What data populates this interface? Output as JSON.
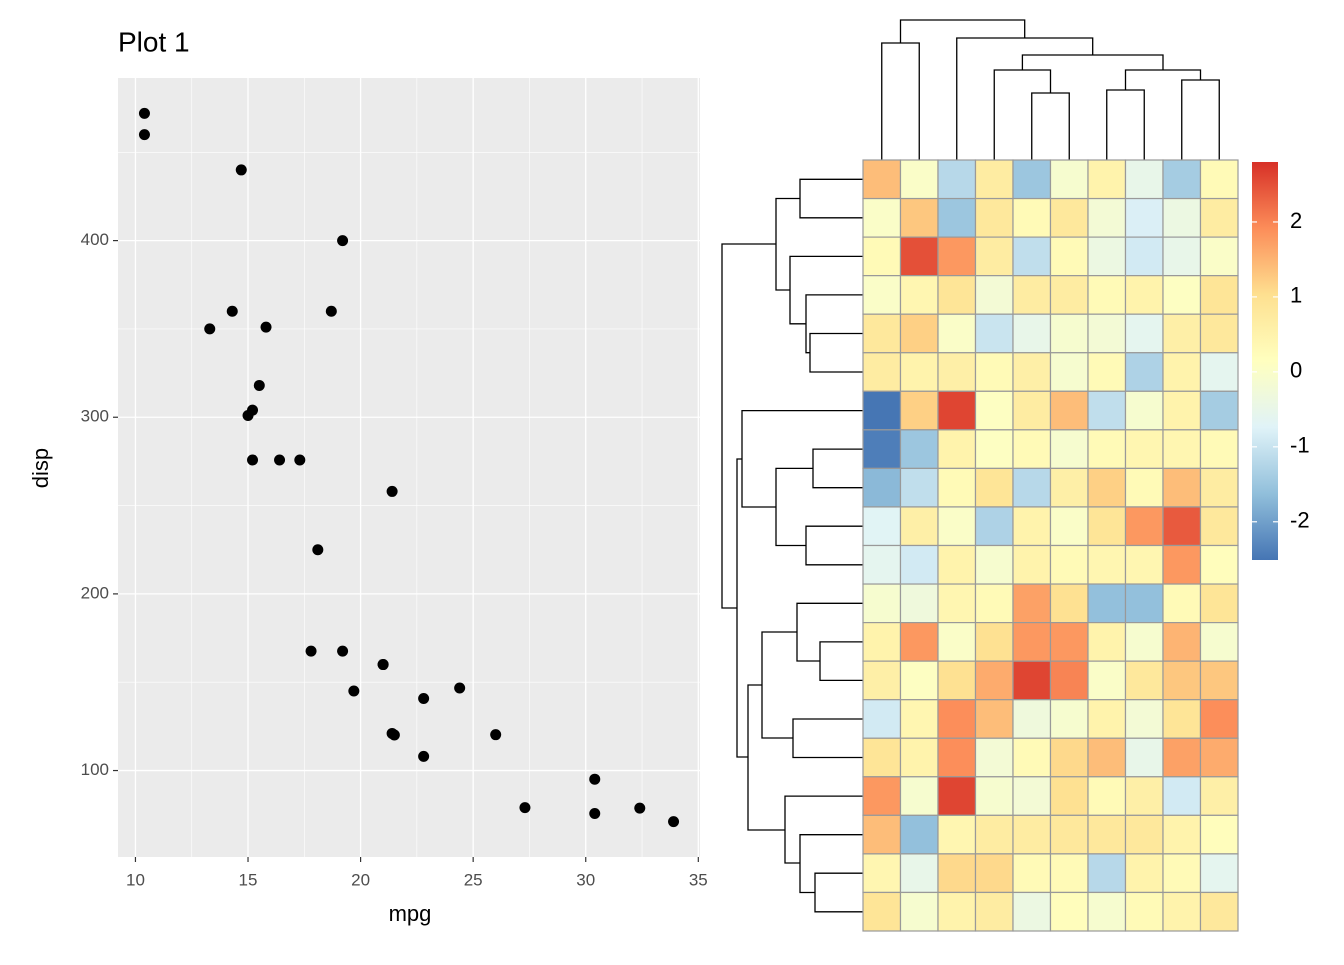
{
  "chart_data": [
    {
      "type": "scatter",
      "title": "Plot 1",
      "x_label": "mpg",
      "y_label": "disp",
      "color": "#000000",
      "x": [
        21,
        21,
        22.8,
        21.4,
        18.7,
        18.1,
        14.3,
        24.4,
        22.8,
        19.2,
        17.8,
        16.4,
        17.3,
        15.2,
        10.4,
        10.4,
        14.7,
        32.4,
        30.4,
        33.9,
        21.5,
        15.5,
        15.2,
        13.3,
        19.2,
        27.3,
        26,
        30.4,
        15.8,
        19.7,
        15,
        21.4
      ],
      "values": [
        160,
        160,
        108,
        258,
        360,
        225,
        360,
        146.7,
        140.8,
        167.6,
        167.6,
        275.8,
        275.8,
        275.8,
        472,
        460,
        440,
        78.7,
        75.7,
        71.1,
        120.1,
        318,
        304,
        350,
        400,
        79,
        120.3,
        95.1,
        351,
        145,
        301,
        121
      ],
      "xlim": [
        9.225,
        35.075
      ],
      "xticks": [
        10,
        15,
        20,
        25,
        30,
        35
      ],
      "xminor": [
        12.5,
        17.5,
        22.5,
        27.5,
        32.5
      ],
      "ylim": [
        51.055,
        492.045
      ],
      "yticks": [
        100,
        200,
        300,
        400
      ],
      "yminor": [
        150,
        250,
        350,
        450
      ],
      "grid": true
    },
    {
      "type": "heatmap",
      "values": [
        [
          1.4,
          0,
          -1.2,
          0.7,
          -1.5,
          -0.1,
          0.5,
          -0.5,
          -1.4,
          0.3
        ],
        [
          0,
          1.3,
          -1.5,
          0.8,
          0.3,
          0.8,
          -0.2,
          -0.8,
          -0.4,
          0.7
        ],
        [
          0.3,
          2.5,
          1.8,
          0.7,
          -1.1,
          0.3,
          -0.4,
          -0.9,
          -0.5,
          0
        ],
        [
          0,
          0.4,
          0.9,
          -0.2,
          0.7,
          0.7,
          0.3,
          0.5,
          0.1,
          0.9
        ],
        [
          0.8,
          1.2,
          0,
          -1.0,
          -0.5,
          -0.1,
          -0.2,
          -0.6,
          0.6,
          0.8
        ],
        [
          0.7,
          0.5,
          0.6,
          0.3,
          0.6,
          -0.1,
          0.3,
          -1.3,
          0.5,
          -0.6
        ],
        [
          -2.5,
          1.2,
          2.6,
          0.1,
          0.7,
          1.4,
          -1.1,
          -0.1,
          0.5,
          -1.4
        ],
        [
          -2.4,
          -1.5,
          0.5,
          0.1,
          0.3,
          -0.1,
          0.3,
          0.4,
          0.4,
          0.3
        ],
        [
          -1.7,
          -1.1,
          0.3,
          0.9,
          -1.2,
          0.6,
          1.2,
          0.3,
          1.4,
          0.7
        ],
        [
          -0.7,
          0.6,
          0,
          -1.3,
          0.5,
          0,
          0.9,
          1.8,
          2.4,
          0.8
        ],
        [
          -0.6,
          -0.9,
          0.5,
          -0.1,
          0.5,
          0.3,
          0.4,
          0.4,
          1.8,
          0.2
        ],
        [
          -0.1,
          -0.3,
          0.4,
          0.3,
          1.7,
          1.0,
          -1.6,
          -1.6,
          0.3,
          0.9
        ],
        [
          0.5,
          1.8,
          0,
          1.0,
          1.8,
          1.8,
          0.5,
          -0.1,
          1.5,
          -0.1
        ],
        [
          0.6,
          0.1,
          1.0,
          1.6,
          2.6,
          2.0,
          0,
          0.8,
          1.3,
          1.3
        ],
        [
          -0.9,
          0.4,
          1.9,
          1.4,
          -0.3,
          -0.1,
          0.5,
          -0.2,
          0.9,
          1.9
        ],
        [
          0.9,
          0.5,
          1.9,
          -0.2,
          0.3,
          1.1,
          1.4,
          -0.5,
          1.7,
          1.6
        ],
        [
          1.8,
          -0.1,
          2.6,
          -0.1,
          -0.2,
          1.0,
          0.3,
          0.6,
          -0.9,
          0.6
        ],
        [
          1.4,
          -1.6,
          0.4,
          0.7,
          0.7,
          0.8,
          0.8,
          0.8,
          0.5,
          0.2
        ],
        [
          0.4,
          -0.5,
          1.1,
          1.1,
          0.3,
          0.3,
          -1.2,
          0.5,
          0.3,
          -0.6
        ],
        [
          0.9,
          -0.1,
          0.5,
          0.7,
          -0.4,
          0.2,
          -0.1,
          0.3,
          0.5,
          0.8
        ]
      ],
      "colorscale": [
        "#4575B4",
        "#91BFDB",
        "#E0F3F8",
        "#FFFFBF",
        "#FEE090",
        "#FC8D59",
        "#D73027"
      ],
      "vlim": [
        -2.51,
        2.8
      ],
      "cticks": [
        -2,
        -1,
        0,
        1,
        2
      ]
    }
  ]
}
